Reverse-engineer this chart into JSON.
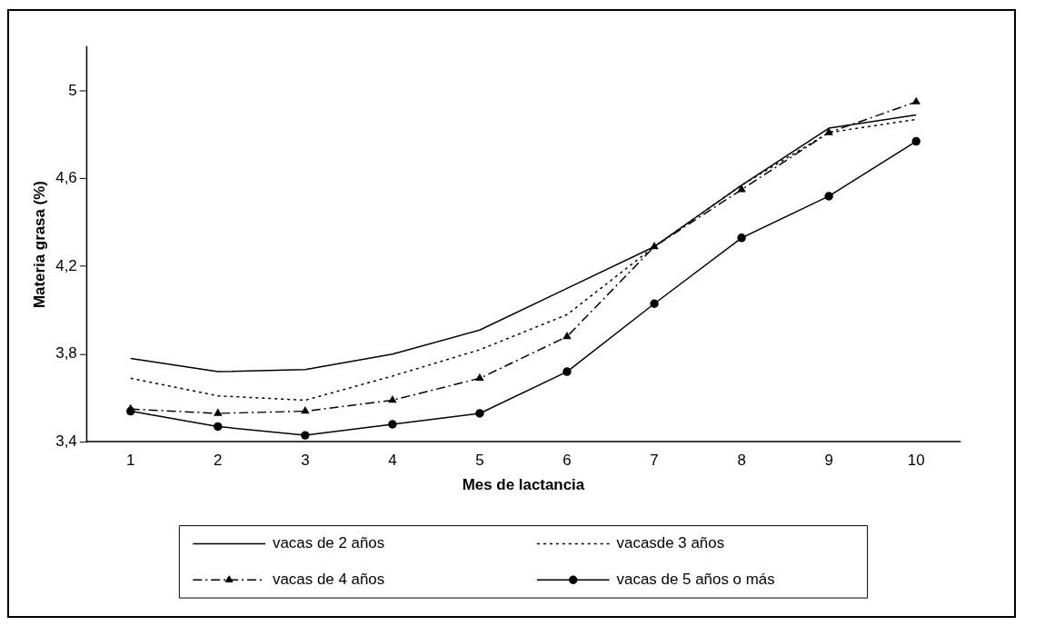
{
  "chart_data": {
    "type": "line",
    "xlabel": "Mes de lactancia",
    "ylabel": "Materia grasa (%)",
    "categories": [
      "1",
      "2",
      "3",
      "4",
      "5",
      "6",
      "7",
      "8",
      "9",
      "10"
    ],
    "ylim": [
      3.4,
      5.2
    ],
    "yticks": [
      {
        "value": 3.4,
        "label": "3,4"
      },
      {
        "value": 3.8,
        "label": "3,8"
      },
      {
        "value": 4.2,
        "label": "4,2"
      },
      {
        "value": 4.6,
        "label": "4,6"
      },
      {
        "value": 5,
        "label": "5"
      }
    ],
    "grid": false,
    "legend": "bottom",
    "series": [
      {
        "name": "vacas de 2 años",
        "color": "#000000",
        "line_style": "solid",
        "marker": "none",
        "values": [
          3.78,
          3.72,
          3.73,
          3.8,
          3.91,
          4.1,
          4.29,
          4.57,
          4.83,
          4.89
        ]
      },
      {
        "name": "vacasde 3 años",
        "color": "#000000",
        "line_style": "dotted",
        "marker": "none",
        "values": [
          3.69,
          3.61,
          3.59,
          3.7,
          3.82,
          3.98,
          4.29,
          4.57,
          4.81,
          4.87
        ]
      },
      {
        "name": "vacas de 4 años",
        "color": "#000000",
        "line_style": "dashed",
        "marker": "triangle",
        "values": [
          3.55,
          3.53,
          3.54,
          3.59,
          3.69,
          3.88,
          4.29,
          4.55,
          4.81,
          4.95
        ]
      },
      {
        "name": "vacas de 5 años o más",
        "color": "#000000",
        "line_style": "solid",
        "marker": "circle",
        "values": [
          3.54,
          3.47,
          3.43,
          3.48,
          3.53,
          3.72,
          4.03,
          4.33,
          4.52,
          4.77
        ]
      }
    ]
  }
}
